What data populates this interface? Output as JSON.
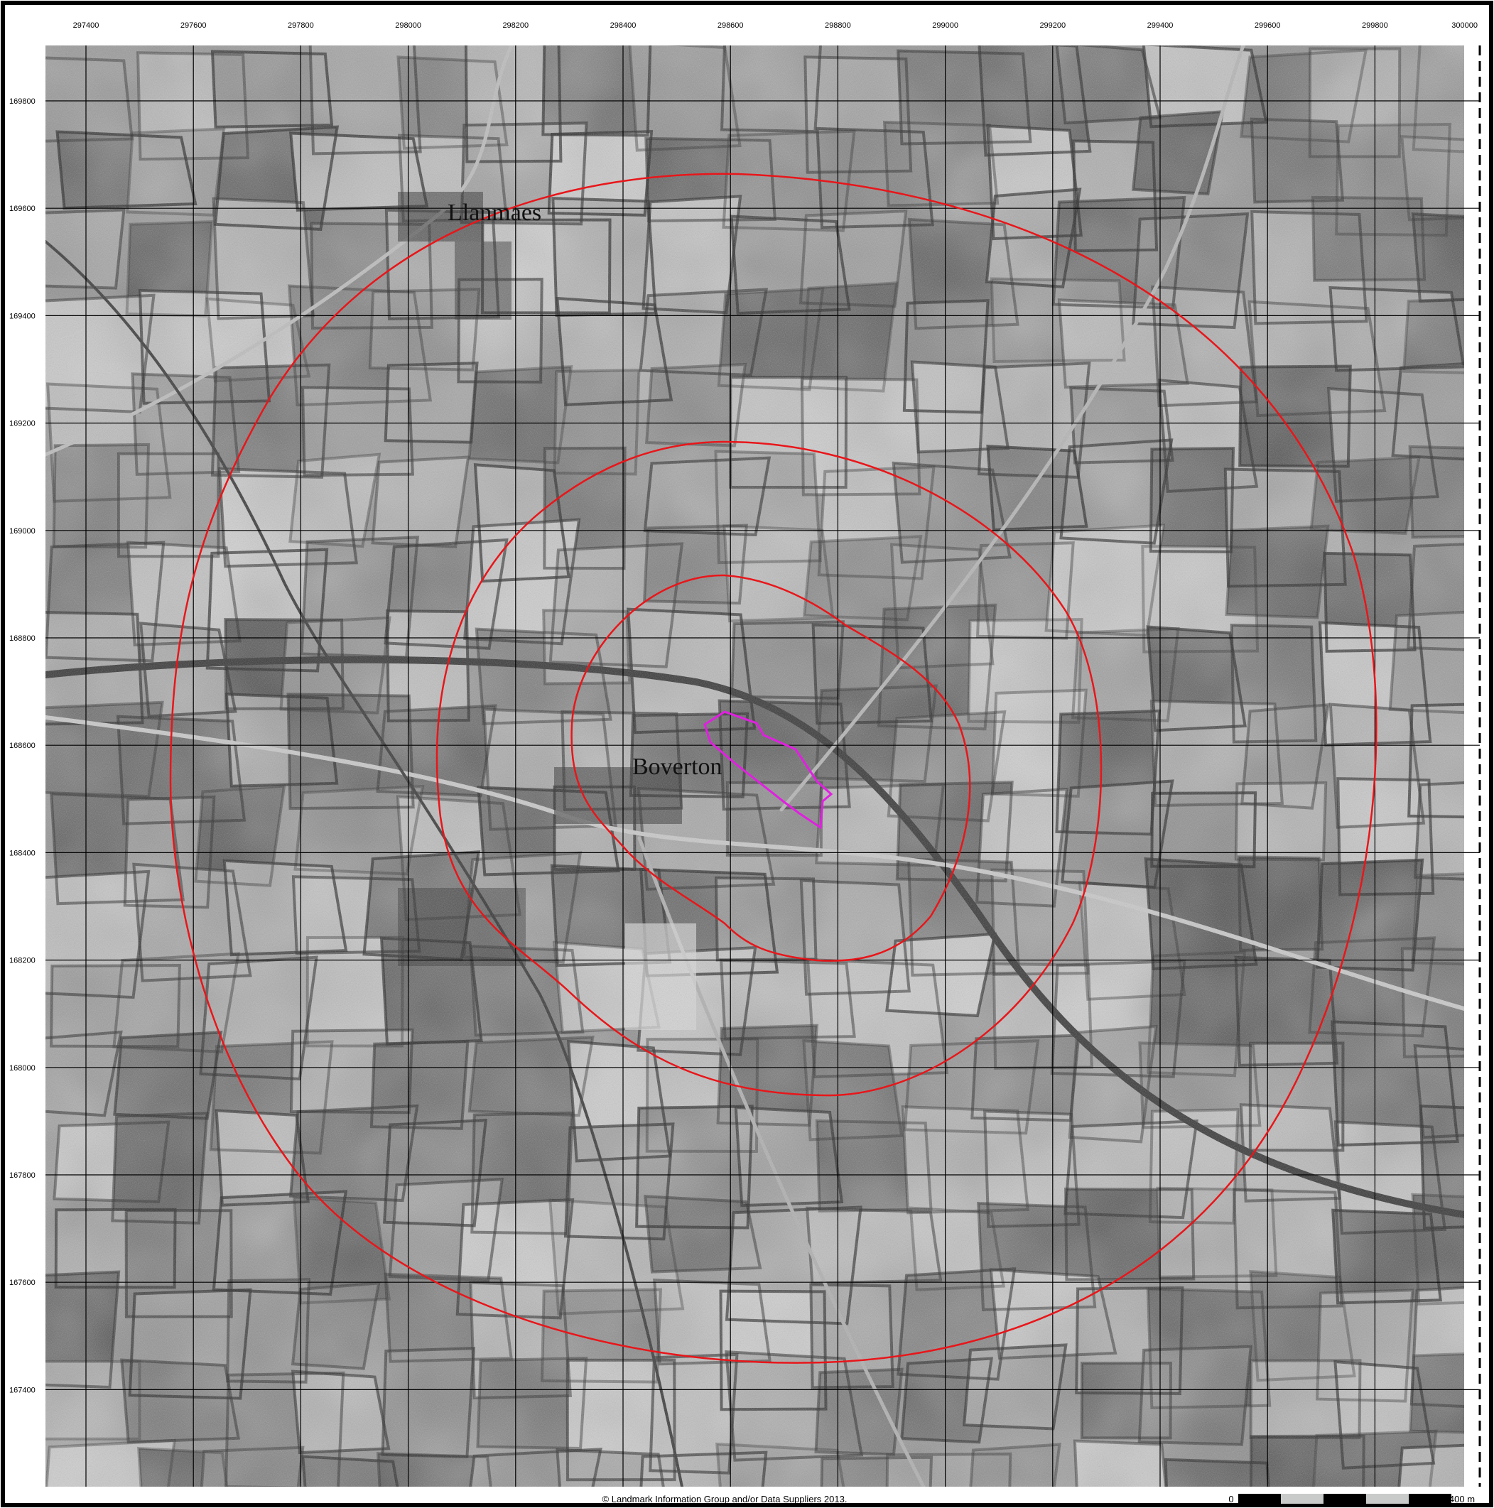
{
  "map": {
    "eastings": [
      {
        "label": "297400",
        "value": 297400
      },
      {
        "label": "297600",
        "value": 297600
      },
      {
        "label": "297800",
        "value": 297800
      },
      {
        "label": "298000",
        "value": 298000
      },
      {
        "label": "298200",
        "value": 298200
      },
      {
        "label": "298400",
        "value": 298400
      },
      {
        "label": "298600",
        "value": 298600
      },
      {
        "label": "298800",
        "value": 298800
      },
      {
        "label": "299000",
        "value": 299000
      },
      {
        "label": "299200",
        "value": 299200
      },
      {
        "label": "299400",
        "value": 299400
      },
      {
        "label": "299600",
        "value": 299600
      },
      {
        "label": "299800",
        "value": 299800
      },
      {
        "label": "300000",
        "value": 300000
      }
    ],
    "northings": [
      {
        "label": "169800",
        "value": 169800
      },
      {
        "label": "169600",
        "value": 169600
      },
      {
        "label": "169400",
        "value": 169400
      },
      {
        "label": "169200",
        "value": 169200
      },
      {
        "label": "169000",
        "value": 169000
      },
      {
        "label": "168800",
        "value": 168800
      },
      {
        "label": "168600",
        "value": 168600
      },
      {
        "label": "168400",
        "value": 168400
      },
      {
        "label": "168200",
        "value": 168200
      },
      {
        "label": "168000",
        "value": 168000
      },
      {
        "label": "167800",
        "value": 167800
      },
      {
        "label": "167600",
        "value": 167600
      },
      {
        "label": "167400",
        "value": 167400
      }
    ],
    "place_labels": {
      "llanmaes": "Llanmaes",
      "boverton": "Boverton"
    },
    "buffer_color": "#e8161a",
    "site_color": "#e020e0",
    "imagery": "black-and-white historical aerial photograph",
    "copyright": "© Landmark Information Group and/or Data Suppliers 2013.",
    "scale_bar": {
      "start_label": "0",
      "end_label": "400 m"
    }
  }
}
